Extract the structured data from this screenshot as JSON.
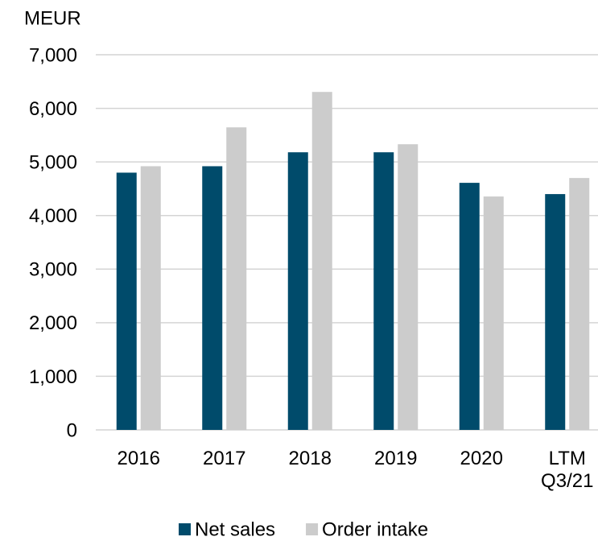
{
  "chart_data": {
    "type": "bar",
    "y_axis_label": "MEUR",
    "categories": [
      "2016",
      "2017",
      "2018",
      "2019",
      "2020",
      "LTM Q3/21"
    ],
    "series": [
      {
        "name": "Net sales",
        "color": "#004b6b",
        "values": [
          4800,
          4920,
          5180,
          5180,
          4610,
          4400
        ]
      },
      {
        "name": "Order intake",
        "color": "#cccccc",
        "values": [
          4920,
          5645,
          6306,
          5330,
          4355,
          4700
        ]
      }
    ],
    "ylim": [
      0,
      7000
    ],
    "yticks": [
      0,
      {
        "value": 1000,
        "label": "1,000"
      },
      {
        "value": 2000,
        "label": "2,000"
      },
      {
        "value": 3000,
        "label": "3,000"
      },
      {
        "value": 4000,
        "label": "4,000"
      },
      {
        "value": 5000,
        "label": "5,000"
      },
      {
        "value": 6000,
        "label": "6,000"
      },
      {
        "value": 7000,
        "label": "7,000"
      }
    ],
    "grid": true,
    "legend": "bottom"
  }
}
